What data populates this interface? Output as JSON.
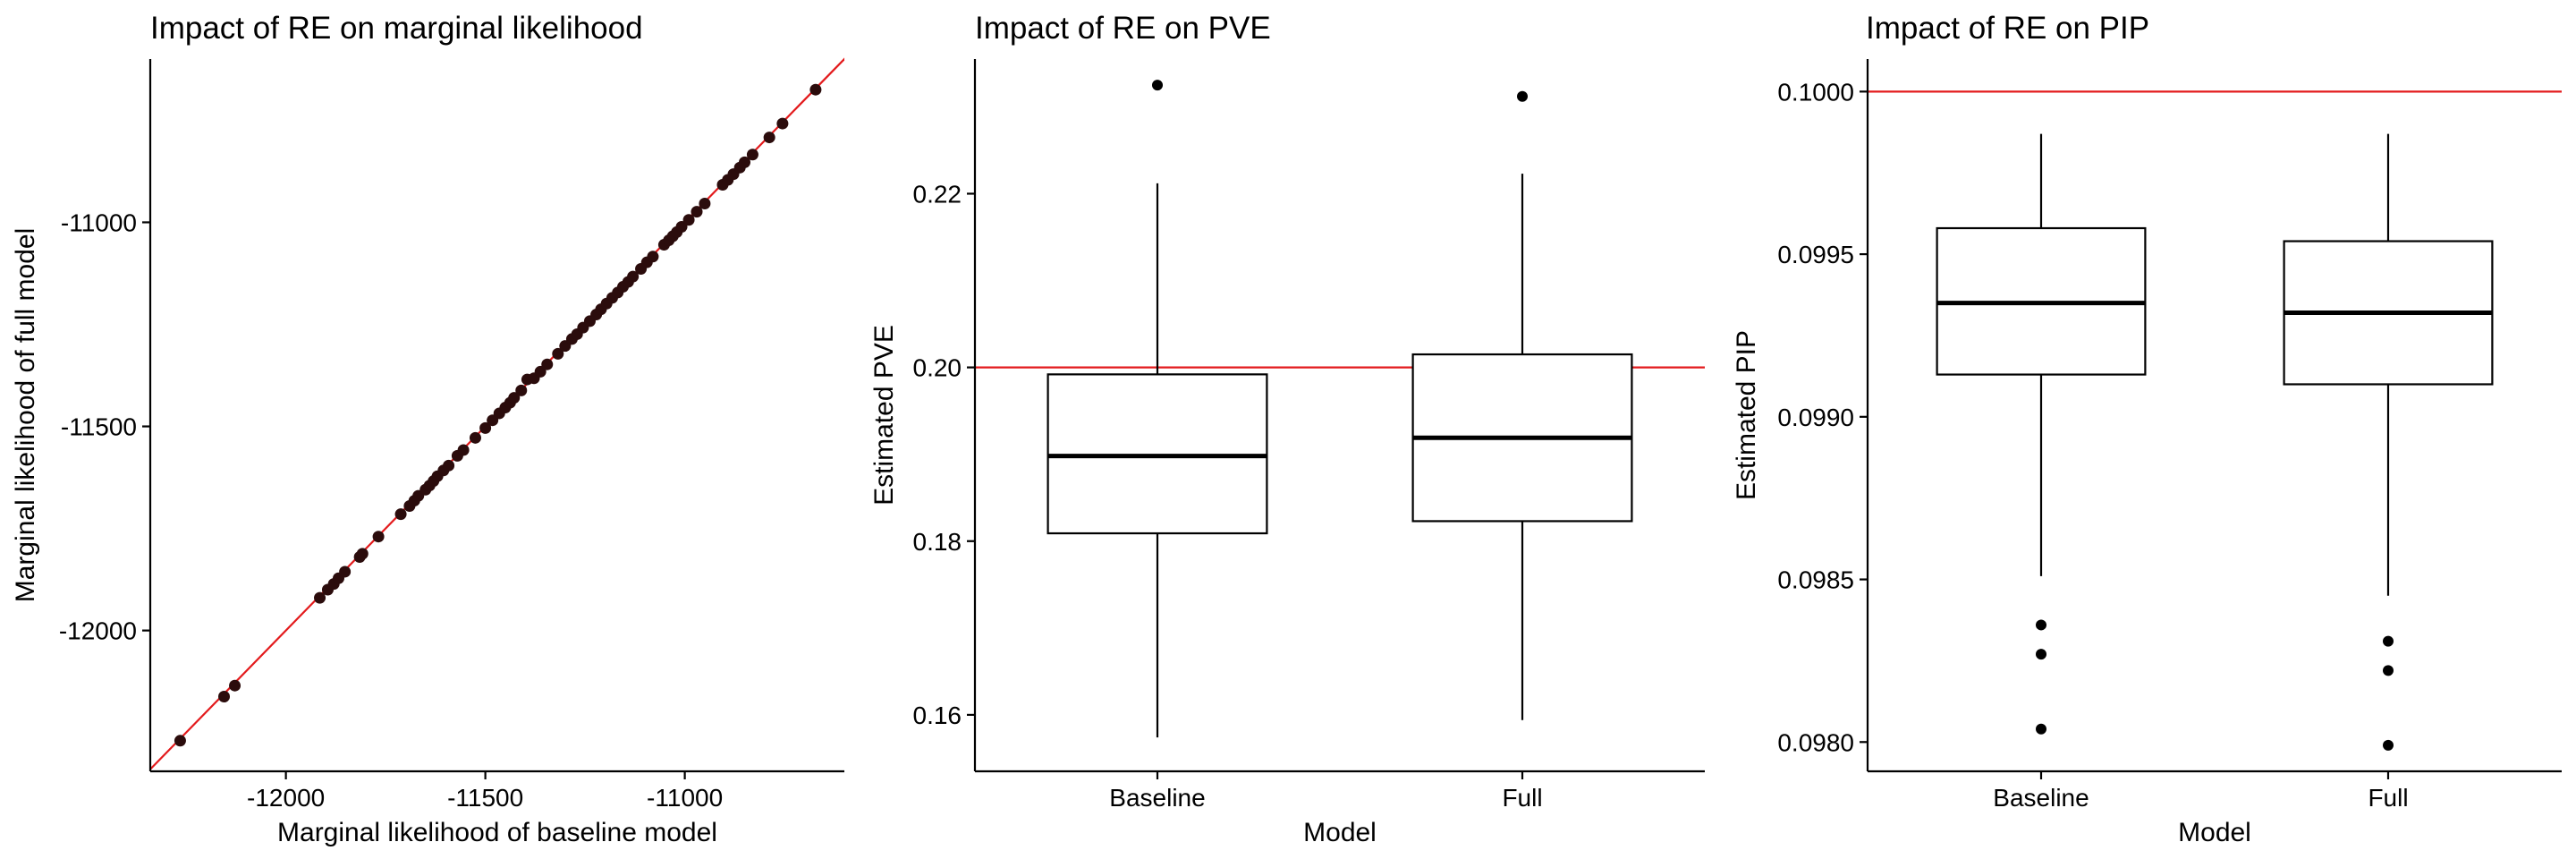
{
  "colors": {
    "reference_line": "#e31a1c",
    "points": "#2b0c0c",
    "boxes": "#000000"
  },
  "chart_data": [
    {
      "type": "scatter",
      "title": "Impact of RE on marginal likelihood",
      "xlabel": "Marginal likelihood of baseline model",
      "ylabel": "Marginal likelihood of full model",
      "xlim": [
        -12340,
        -10600
      ],
      "ylim": [
        -12345,
        -10600
      ],
      "xticks": [
        -12000,
        -11500,
        -11000
      ],
      "yticks": [
        -12000,
        -11500,
        -11000
      ],
      "xtick_labels": [
        "-12000",
        "-11500",
        "-11000"
      ],
      "ytick_labels": [
        "-12000",
        "-11500",
        "-11000"
      ],
      "reference_line": {
        "type": "identity",
        "slope": 1,
        "intercept": 0
      },
      "grid": false,
      "x": [
        -12265,
        -12155,
        -12128,
        -11915,
        -11895,
        -11880,
        -11868,
        -11852,
        -11815,
        -11808,
        -11768,
        -11712,
        -11690,
        -11678,
        -11668,
        -11650,
        -11640,
        -11630,
        -11620,
        -11605,
        -11592,
        -11570,
        -11555,
        -11525,
        -11500,
        -11482,
        -11465,
        -11450,
        -11438,
        -11428,
        -11410,
        -11395,
        -11378,
        -11362,
        -11345,
        -11318,
        -11300,
        -11283,
        -11270,
        -11255,
        -11238,
        -11222,
        -11210,
        -11196,
        -11182,
        -11168,
        -11155,
        -11142,
        -11130,
        -11110,
        -11095,
        -11080,
        -11052,
        -11040,
        -11030,
        -11020,
        -11008,
        -10990,
        -10970,
        -10950,
        -10905,
        -10892,
        -10878,
        -10862,
        -10850,
        -10830,
        -10788,
        -10755,
        -10672
      ],
      "y": [
        -12270,
        -12162,
        -12135,
        -11920,
        -11900,
        -11886,
        -11872,
        -11856,
        -11820,
        -11812,
        -11770,
        -11715,
        -11695,
        -11682,
        -11670,
        -11655,
        -11645,
        -11634,
        -11622,
        -11608,
        -11596,
        -11572,
        -11558,
        -11528,
        -11504,
        -11485,
        -11468,
        -11454,
        -11442,
        -11430,
        -11412,
        -11385,
        -11382,
        -11366,
        -11348,
        -11322,
        -11303,
        -11286,
        -11274,
        -11258,
        -11242,
        -11226,
        -11213,
        -11199,
        -11185,
        -11172,
        -11158,
        -11146,
        -11133,
        -11114,
        -11098,
        -11084,
        -11055,
        -11044,
        -11034,
        -11024,
        -11011,
        -10994,
        -10974,
        -10954,
        -10908,
        -10896,
        -10882,
        -10866,
        -10853,
        -10834,
        -10792,
        -10758,
        -10675
      ]
    },
    {
      "type": "box",
      "title": "Impact of RE on PVE",
      "xlabel": "Model",
      "ylabel": "Estimated PVE",
      "categories": [
        "Baseline",
        "Full"
      ],
      "ylim": [
        0.1535,
        0.2355
      ],
      "yticks": [
        0.16,
        0.18,
        0.2,
        0.22
      ],
      "ytick_labels": [
        "0.16",
        "0.18",
        "0.20",
        "0.22"
      ],
      "reference_line": {
        "type": "horizontal",
        "y": 0.2
      },
      "grid": false,
      "boxes": [
        {
          "name": "Baseline",
          "whisker_low": 0.1574,
          "q1": 0.1809,
          "median": 0.1898,
          "q3": 0.1992,
          "whisker_high": 0.2212,
          "outliers": [
            0.2325
          ]
        },
        {
          "name": "Full",
          "whisker_low": 0.1594,
          "q1": 0.1823,
          "median": 0.1919,
          "q3": 0.2015,
          "whisker_high": 0.2223,
          "outliers": [
            0.2312
          ]
        }
      ]
    },
    {
      "type": "box",
      "title": "Impact of RE on PIP",
      "xlabel": "Model",
      "ylabel": "Estimated PIP",
      "categories": [
        "Baseline",
        "Full"
      ],
      "ylim": [
        0.09791,
        0.1001
      ],
      "yticks": [
        0.098,
        0.0985,
        0.099,
        0.0995,
        0.1
      ],
      "ytick_labels": [
        "0.0980",
        "0.0985",
        "0.0990",
        "0.0995",
        "0.1000"
      ],
      "reference_line": {
        "type": "horizontal",
        "y": 0.1
      },
      "grid": false,
      "boxes": [
        {
          "name": "Baseline",
          "whisker_low": 0.09851,
          "q1": 0.09913,
          "median": 0.09935,
          "q3": 0.09958,
          "whisker_high": 0.09987,
          "outliers": [
            0.09836,
            0.09827,
            0.09804
          ]
        },
        {
          "name": "Full",
          "whisker_low": 0.09845,
          "q1": 0.0991,
          "median": 0.09932,
          "q3": 0.09954,
          "whisker_high": 0.09987,
          "outliers": [
            0.09831,
            0.09822,
            0.09799
          ]
        }
      ]
    }
  ]
}
